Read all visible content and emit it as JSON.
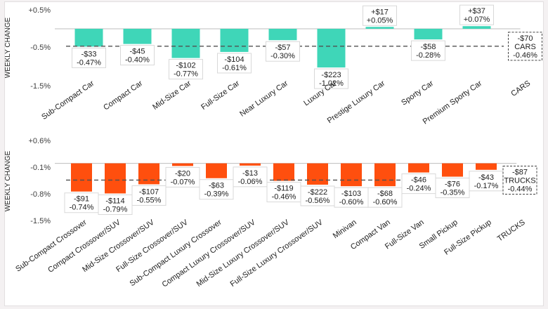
{
  "colors": {
    "cars": "#3fd6b8",
    "trucks": "#ff4f0e",
    "avg_line": "#505050"
  },
  "chart_data": [
    {
      "type": "bar",
      "ylabel": "WEEKLY CHANGE",
      "yticks": [
        "+0.5%",
        "-0.5%",
        "-1.5%"
      ],
      "ylim": [
        -1.5,
        0.5
      ],
      "categories": [
        "Sub-Compact Car",
        "Compact Car",
        "Mid-Size Car",
        "Full-Size Car",
        "Near Luxury Car",
        "Luxury Car",
        "Prestige Luxury Car",
        "Sporty Car",
        "Premium Sporty Car",
        "CARS"
      ],
      "values": [
        -0.47,
        -0.4,
        -0.77,
        -0.61,
        -0.3,
        -1.02,
        0.05,
        -0.28,
        0.07,
        null
      ],
      "dollar_labels": [
        "-$33",
        "-$45",
        "-$102",
        "-$104",
        "-$57",
        "-$223",
        "+$17",
        "-$58",
        "+$37",
        "-$70"
      ],
      "pct_labels": [
        "-0.47%",
        "-0.40%",
        "-0.77%",
        "-0.61%",
        "-0.30%",
        "-1.02%",
        "+0.05%",
        "-0.28%",
        "+0.07%",
        "-0.46%"
      ],
      "average": {
        "label": "CARS",
        "dollar": "-$70",
        "pct": "-0.46%",
        "value": -0.46
      }
    },
    {
      "type": "bar",
      "ylabel": "WEEKLY CHANGE",
      "yticks": [
        "+0.6%",
        "-0.1%",
        "-0.8%",
        "-1.5%"
      ],
      "ylim": [
        -1.5,
        0.6
      ],
      "categories": [
        "Sub-Compact Crossover",
        "Compact Crossover/SUV",
        "Mid-Size Crossover/SUV",
        "Full-Size Crossover/SUV",
        "Sub-Compact Luxury Crossover",
        "Compact Luxury Crossover/SUV",
        "Mid-Size Luxury Crossover/SUV",
        "Full-Size Luxury Crossover/SUV",
        "Minivan",
        "Compact Van",
        "Full-Size Van",
        "Small Pickup",
        "Full-Size Pickup",
        "TRUCKS"
      ],
      "values": [
        -0.74,
        -0.79,
        -0.55,
        -0.07,
        -0.39,
        -0.06,
        -0.46,
        -0.56,
        -0.6,
        -0.6,
        -0.24,
        -0.35,
        -0.17,
        null
      ],
      "dollar_labels": [
        "-$91",
        "-$114",
        "-$107",
        "-$20",
        "-$63",
        "-$13",
        "-$119",
        "-$222",
        "-$103",
        "-$68",
        "-$46",
        "-$76",
        "-$43",
        "-$87"
      ],
      "pct_labels": [
        "-0.74%",
        "-0.79%",
        "-0.55%",
        "-0.07%",
        "-0.39%",
        "-0.06%",
        "-0.46%",
        "-0.56%",
        "-0.60%",
        "-0.60%",
        "-0.24%",
        "-0.35%",
        "-0.17%",
        "-0.44%"
      ],
      "average": {
        "label": "TRUCKS",
        "dollar": "-$87",
        "pct": "-0.44%",
        "value": -0.44
      }
    }
  ]
}
